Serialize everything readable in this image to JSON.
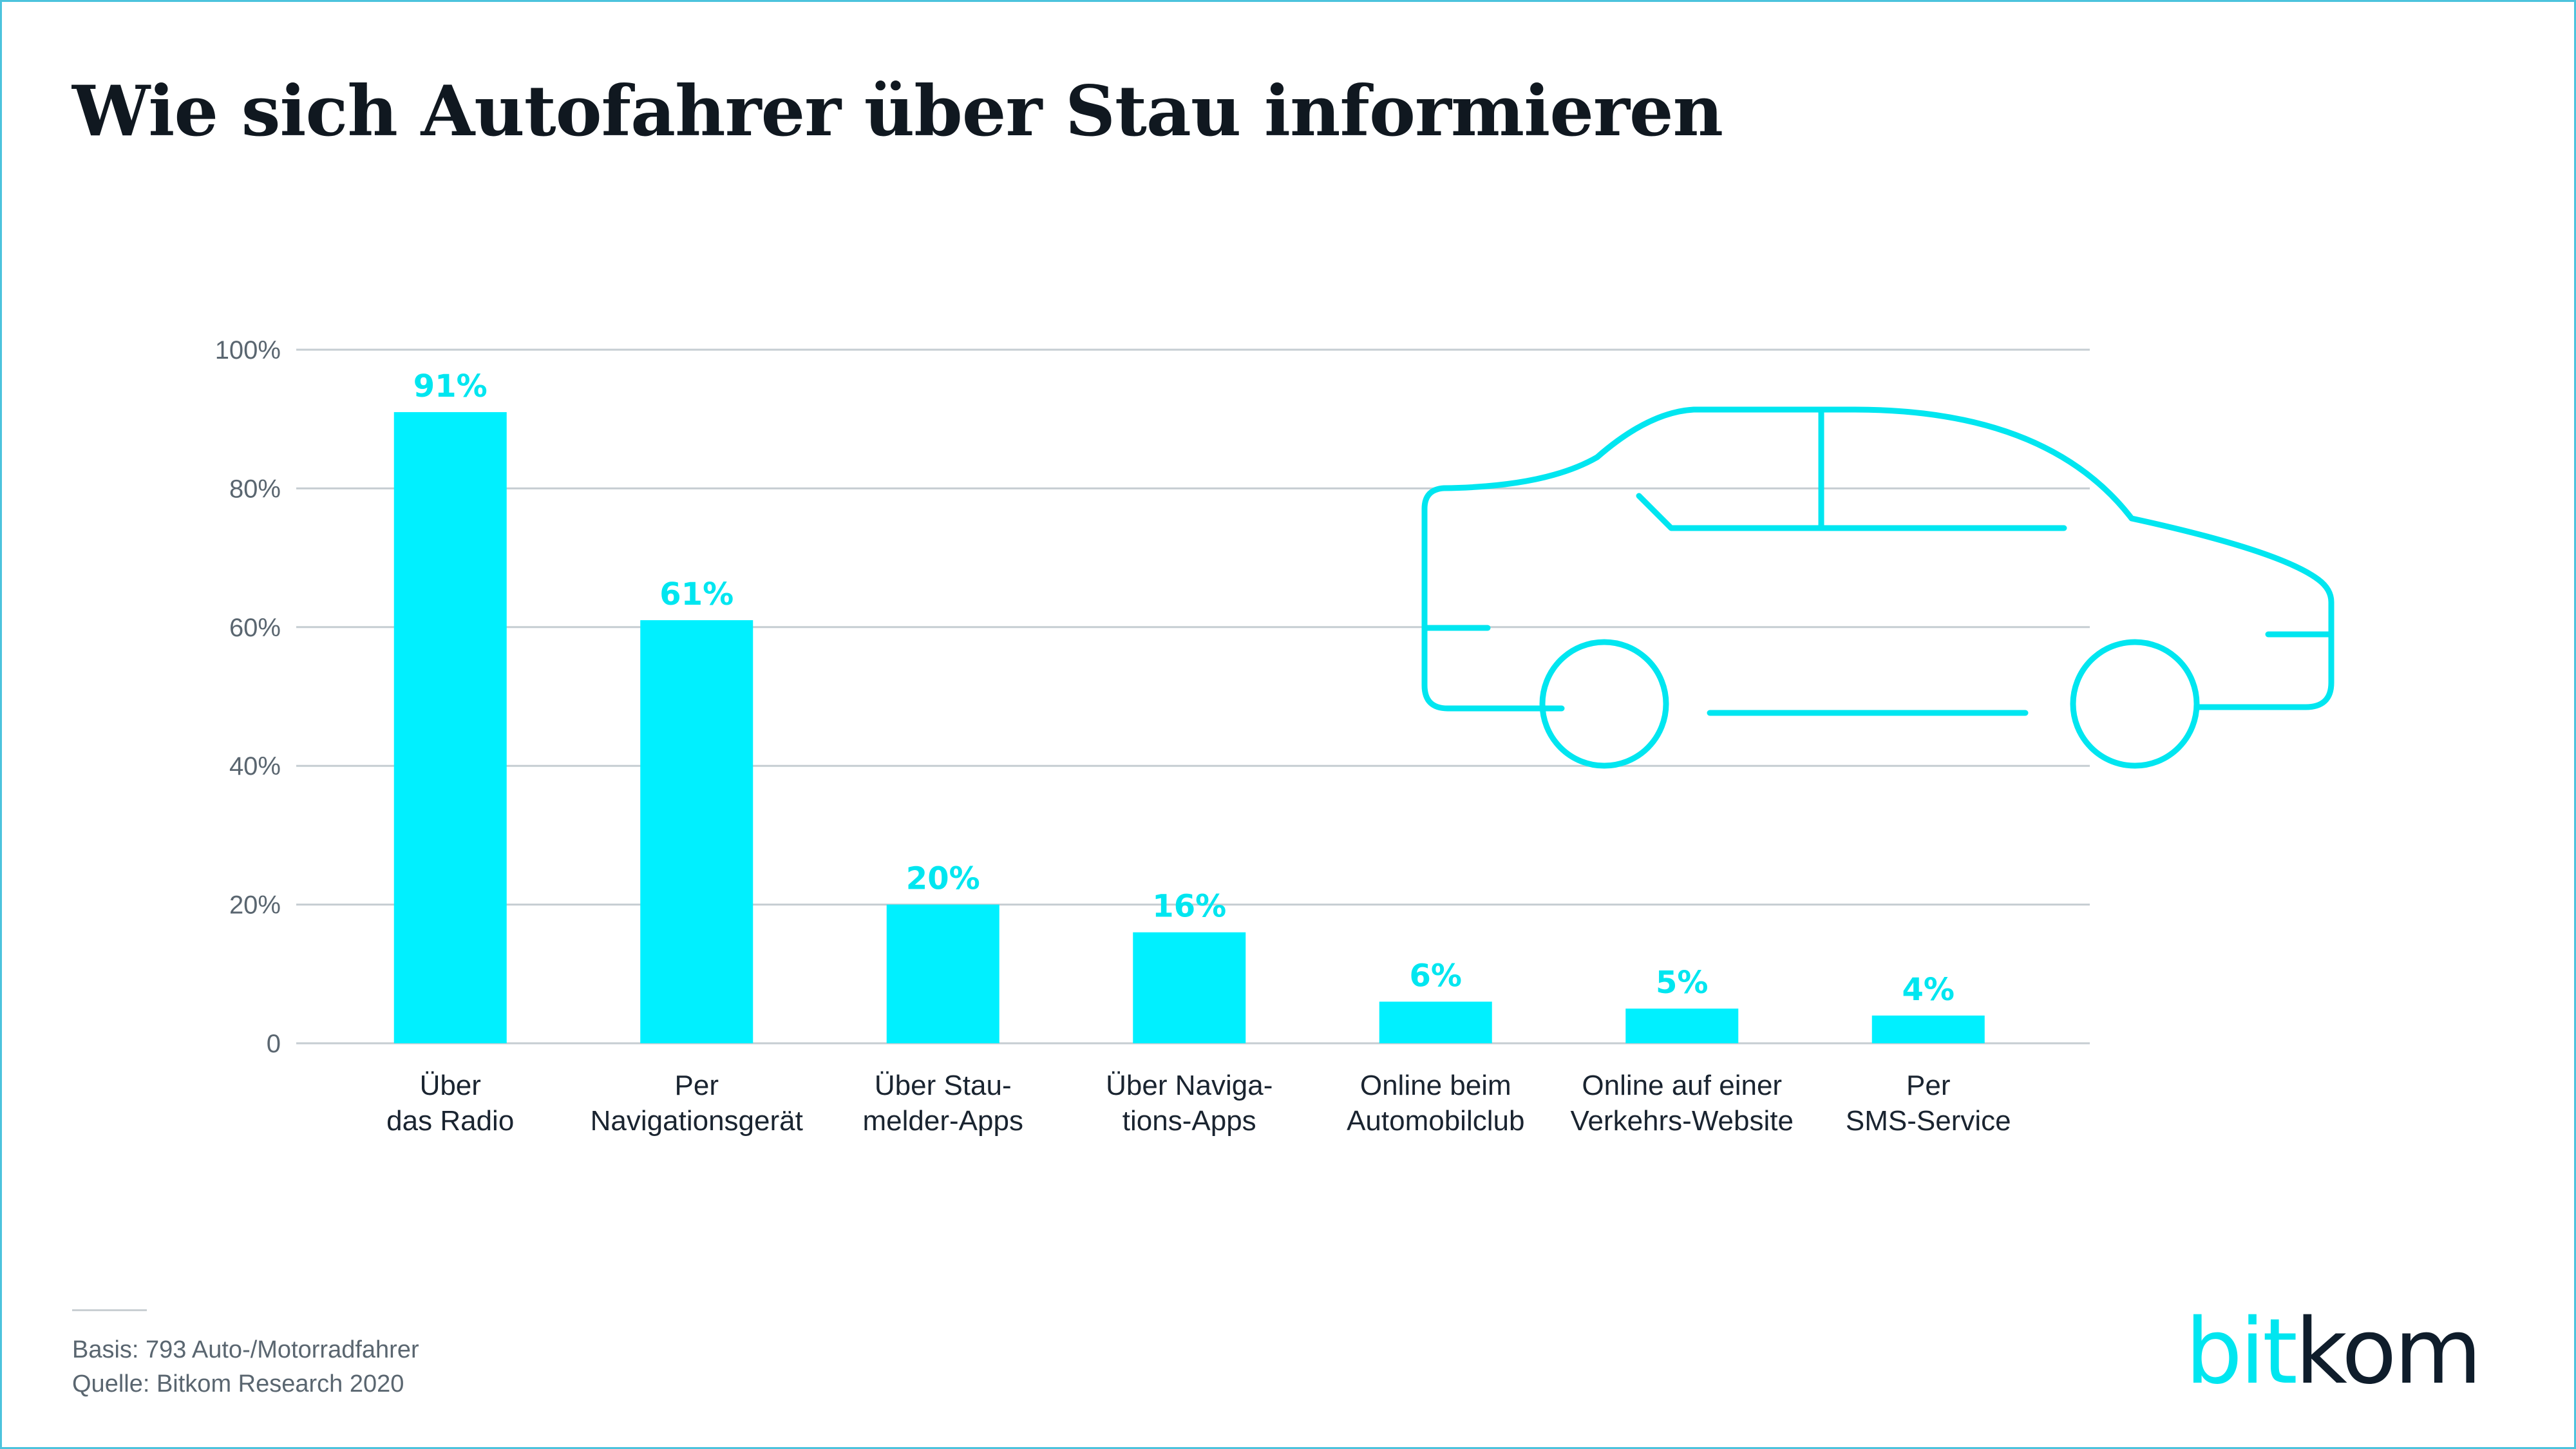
{
  "title": "Wie sich Autofahrer über Stau informieren",
  "chart_data": {
    "type": "bar",
    "categories": [
      [
        "Über",
        "das Radio"
      ],
      [
        "Per",
        "Navigationsgerät"
      ],
      [
        "Über Stau-",
        "melder-Apps"
      ],
      [
        "Über Naviga-",
        "tions-Apps"
      ],
      [
        "Online beim",
        "Automobilclub"
      ],
      [
        "Online auf einer",
        "Verkehrs-Website"
      ],
      [
        "Per",
        "SMS-Service"
      ]
    ],
    "values": [
      91,
      61,
      20,
      16,
      6,
      5,
      4
    ],
    "value_labels": [
      "91%",
      "61%",
      "20%",
      "16%",
      "6%",
      "5%",
      "4%"
    ],
    "y_ticks": [
      0,
      20,
      40,
      60,
      80,
      100
    ],
    "y_tick_labels": [
      "0",
      "20%",
      "40%",
      "60%",
      "80%",
      "100%"
    ],
    "ylim": [
      0,
      100
    ],
    "grid": true,
    "bar_color": "#00f0ff",
    "label_color": "#00e6f0"
  },
  "footnotes": {
    "basis": "Basis: 793 Auto-/Motorradfahrer",
    "source": "Quelle: Bitkom Research 2020"
  },
  "logo": {
    "part1": "bit",
    "part2": "kom"
  }
}
